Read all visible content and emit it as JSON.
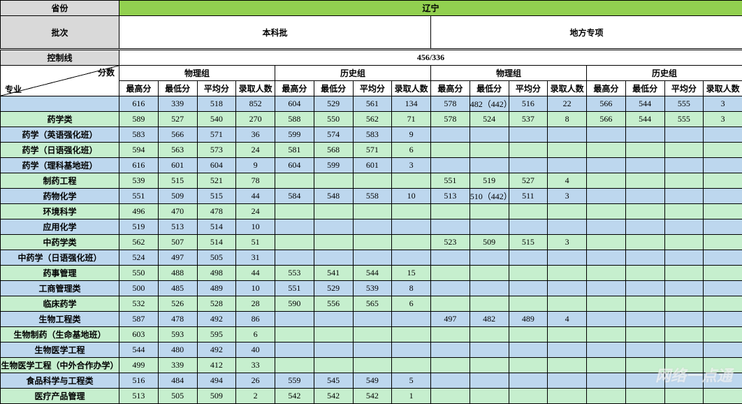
{
  "header": {
    "province_label": "省份",
    "province_value": "辽宁",
    "batch_label": "批次",
    "batch_values": [
      "本科批",
      "地方专项"
    ],
    "ctrl_line_label": "控制线",
    "ctrl_line_value": "456/336",
    "group_labels": [
      "物理组",
      "历史组",
      "物理组",
      "历史组"
    ],
    "diag_top": "分数",
    "diag_bottom": "专业",
    "score_cols": [
      "最高分",
      "最低分",
      "平均分",
      "录取人数"
    ]
  },
  "colwidths": {
    "label": 170,
    "data": 55.75
  },
  "rows": [
    {
      "rc": "blue",
      "label": "",
      "c": [
        "616",
        "339",
        "518",
        "852",
        "604",
        "529",
        "561",
        "134",
        "578",
        "482（442）",
        "516",
        "22",
        "566",
        "544",
        "555",
        "3"
      ]
    },
    {
      "rc": "green",
      "label": "药学类",
      "c": [
        "589",
        "527",
        "540",
        "270",
        "588",
        "550",
        "562",
        "71",
        "578",
        "524",
        "537",
        "8",
        "566",
        "544",
        "555",
        "3"
      ]
    },
    {
      "rc": "blue",
      "label": "药学（英语强化班）",
      "c": [
        "583",
        "566",
        "571",
        "36",
        "599",
        "574",
        "583",
        "9",
        "",
        "",
        "",
        "",
        "",
        "",
        "",
        ""
      ]
    },
    {
      "rc": "green",
      "label": "药学（日语强化班）",
      "c": [
        "594",
        "563",
        "573",
        "24",
        "581",
        "568",
        "571",
        "6",
        "",
        "",
        "",
        "",
        "",
        "",
        "",
        ""
      ]
    },
    {
      "rc": "blue",
      "label": "药学（理科基地班）",
      "c": [
        "616",
        "601",
        "604",
        "9",
        "604",
        "599",
        "601",
        "3",
        "",
        "",
        "",
        "",
        "",
        "",
        "",
        ""
      ]
    },
    {
      "rc": "green",
      "label": "制药工程",
      "c": [
        "539",
        "515",
        "521",
        "78",
        "",
        "",
        "",
        "",
        "551",
        "519",
        "527",
        "4",
        "",
        "",
        "",
        ""
      ]
    },
    {
      "rc": "blue",
      "label": "药物化学",
      "c": [
        "551",
        "509",
        "515",
        "44",
        "584",
        "548",
        "558",
        "10",
        "513",
        "510（442）",
        "511",
        "3",
        "",
        "",
        "",
        ""
      ]
    },
    {
      "rc": "green",
      "label": "环境科学",
      "c": [
        "496",
        "470",
        "478",
        "24",
        "",
        "",
        "",
        "",
        "",
        "",
        "",
        "",
        "",
        "",
        "",
        ""
      ]
    },
    {
      "rc": "blue",
      "label": "应用化学",
      "c": [
        "519",
        "513",
        "514",
        "10",
        "",
        "",
        "",
        "",
        "",
        "",
        "",
        "",
        "",
        "",
        "",
        ""
      ]
    },
    {
      "rc": "green",
      "label": "中药学类",
      "c": [
        "562",
        "507",
        "514",
        "51",
        "",
        "",
        "",
        "",
        "523",
        "509",
        "515",
        "3",
        "",
        "",
        "",
        ""
      ]
    },
    {
      "rc": "blue",
      "label": "中药学（日语强化班）",
      "c": [
        "524",
        "497",
        "505",
        "31",
        "",
        "",
        "",
        "",
        "",
        "",
        "",
        "",
        "",
        "",
        "",
        ""
      ]
    },
    {
      "rc": "green",
      "label": "药事管理",
      "c": [
        "550",
        "488",
        "498",
        "44",
        "553",
        "541",
        "544",
        "15",
        "",
        "",
        "",
        "",
        "",
        "",
        "",
        ""
      ]
    },
    {
      "rc": "blue",
      "label": "工商管理类",
      "c": [
        "500",
        "485",
        "489",
        "10",
        "551",
        "529",
        "539",
        "8",
        "",
        "",
        "",
        "",
        "",
        "",
        "",
        ""
      ]
    },
    {
      "rc": "green",
      "label": "临床药学",
      "c": [
        "532",
        "526",
        "528",
        "28",
        "590",
        "556",
        "565",
        "6",
        "",
        "",
        "",
        "",
        "",
        "",
        "",
        ""
      ]
    },
    {
      "rc": "blue",
      "label": "生物工程类",
      "c": [
        "587",
        "478",
        "492",
        "86",
        "",
        "",
        "",
        "",
        "497",
        "482",
        "489",
        "4",
        "",
        "",
        "",
        ""
      ]
    },
    {
      "rc": "green",
      "label": "生物制药（生命基地班）",
      "c": [
        "603",
        "593",
        "595",
        "6",
        "",
        "",
        "",
        "",
        "",
        "",
        "",
        "",
        "",
        "",
        "",
        ""
      ]
    },
    {
      "rc": "blue",
      "label": "生物医学工程",
      "c": [
        "544",
        "480",
        "492",
        "40",
        "",
        "",
        "",
        "",
        "",
        "",
        "",
        "",
        "",
        "",
        "",
        ""
      ]
    },
    {
      "rc": "green",
      "label": "生物医学工程（中外合作办学）",
      "c": [
        "499",
        "339",
        "412",
        "33",
        "",
        "",
        "",
        "",
        "",
        "",
        "",
        "",
        "",
        "",
        "",
        ""
      ]
    },
    {
      "rc": "blue",
      "label": "食品科学与工程类",
      "c": [
        "516",
        "484",
        "494",
        "26",
        "559",
        "545",
        "549",
        "5",
        "",
        "",
        "",
        "",
        "",
        "",
        "",
        ""
      ]
    },
    {
      "rc": "green",
      "label": "医疗产品管理",
      "c": [
        "513",
        "505",
        "509",
        "2",
        "542",
        "542",
        "542",
        "1",
        "",
        "",
        "",
        "",
        "",
        "",
        "",
        ""
      ]
    }
  ],
  "watermark": "网络一点通",
  "colors": {
    "row_green": "#c6efce",
    "row_blue": "#bdd7ee",
    "hdr_gray": "#d9d9d9",
    "hdr_green": "#92d050"
  }
}
